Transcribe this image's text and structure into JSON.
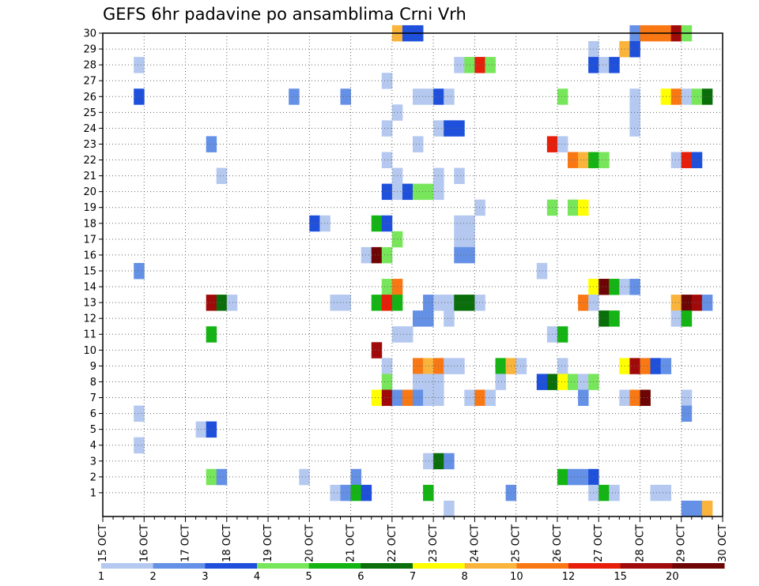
{
  "chart_data": {
    "type": "heatmap",
    "title": "GEFS 6hr padavine po ansamblima Crni Vrh",
    "xlabel": "",
    "ylabel": "",
    "x_ticks": [
      "15 OCT",
      "16 OCT",
      "17 OCT",
      "18 OCT",
      "19 OCT",
      "20 OCT",
      "21 OCT",
      "22 OCT",
      "23 OCT",
      "24 OCT",
      "25 OCT",
      "26 OCT",
      "27 OCT",
      "28 OCT",
      "29 OCT",
      "30 OCT"
    ],
    "y_ticks": [
      "1",
      "2",
      "3",
      "4",
      "5",
      "6",
      "7",
      "8",
      "9",
      "10",
      "11",
      "12",
      "13",
      "14",
      "15",
      "16",
      "17",
      "18",
      "19",
      "20",
      "21",
      "22",
      "23",
      "24",
      "25",
      "26",
      "27",
      "28",
      "29",
      "30"
    ],
    "x_range": [
      "15 OCT 00Z",
      "30 OCT 00Z"
    ],
    "y_range": [
      0,
      30
    ],
    "time_step_hours": 6,
    "grid": true,
    "grid_style": "dotted",
    "color_scale": {
      "colors": [
        "#b4c8f0",
        "#6490e6",
        "#1e50dc",
        "#78e65a",
        "#14b414",
        "#0a6e0a",
        "#ffff00",
        "#fab43c",
        "#fa7814",
        "#e61e0a",
        "#a00a0a",
        "#6e0505"
      ],
      "labels": [
        "1",
        "2",
        "3",
        "4",
        "5",
        "6",
        "7",
        "8",
        "10",
        "12",
        "15",
        "20"
      ]
    },
    "cells": [
      {
        "member": 30,
        "day": 22,
        "hour": 0,
        "cls": 8
      },
      {
        "member": 30,
        "day": 22,
        "hour": 6,
        "cls": 3
      },
      {
        "member": 30,
        "day": 22,
        "hour": 12,
        "cls": 3
      },
      {
        "member": 30,
        "day": 27,
        "hour": 18,
        "cls": 2
      },
      {
        "member": 30,
        "day": 28,
        "hour": 0,
        "cls": 9
      },
      {
        "member": 30,
        "day": 28,
        "hour": 6,
        "cls": 9
      },
      {
        "member": 30,
        "day": 28,
        "hour": 12,
        "cls": 9
      },
      {
        "member": 30,
        "day": 28,
        "hour": 18,
        "cls": 11
      },
      {
        "member": 30,
        "day": 29,
        "hour": 0,
        "cls": 4
      },
      {
        "member": 29,
        "day": 26,
        "hour": 18,
        "cls": 1
      },
      {
        "member": 29,
        "day": 27,
        "hour": 12,
        "cls": 8
      },
      {
        "member": 29,
        "day": 27,
        "hour": 18,
        "cls": 3
      },
      {
        "member": 28,
        "day": 15,
        "hour": 18,
        "cls": 1
      },
      {
        "member": 28,
        "day": 23,
        "hour": 12,
        "cls": 1
      },
      {
        "member": 28,
        "day": 23,
        "hour": 18,
        "cls": 4
      },
      {
        "member": 28,
        "day": 24,
        "hour": 0,
        "cls": 10
      },
      {
        "member": 28,
        "day": 24,
        "hour": 6,
        "cls": 4
      },
      {
        "member": 28,
        "day": 26,
        "hour": 18,
        "cls": 3
      },
      {
        "member": 28,
        "day": 27,
        "hour": 0,
        "cls": 1
      },
      {
        "member": 28,
        "day": 27,
        "hour": 6,
        "cls": 3
      },
      {
        "member": 27,
        "day": 21,
        "hour": 18,
        "cls": 1
      },
      {
        "member": 26,
        "day": 15,
        "hour": 18,
        "cls": 3
      },
      {
        "member": 26,
        "day": 19,
        "hour": 12,
        "cls": 2
      },
      {
        "member": 26,
        "day": 20,
        "hour": 18,
        "cls": 2
      },
      {
        "member": 26,
        "day": 22,
        "hour": 12,
        "cls": 1
      },
      {
        "member": 26,
        "day": 22,
        "hour": 18,
        "cls": 1
      },
      {
        "member": 26,
        "day": 23,
        "hour": 0,
        "cls": 3
      },
      {
        "member": 26,
        "day": 23,
        "hour": 6,
        "cls": 1
      },
      {
        "member": 26,
        "day": 26,
        "hour": 0,
        "cls": 4
      },
      {
        "member": 26,
        "day": 27,
        "hour": 18,
        "cls": 1
      },
      {
        "member": 26,
        "day": 28,
        "hour": 12,
        "cls": 7
      },
      {
        "member": 26,
        "day": 28,
        "hour": 18,
        "cls": 9
      },
      {
        "member": 26,
        "day": 29,
        "hour": 0,
        "cls": 1
      },
      {
        "member": 26,
        "day": 29,
        "hour": 6,
        "cls": 4
      },
      {
        "member": 26,
        "day": 29,
        "hour": 12,
        "cls": 6
      },
      {
        "member": 25,
        "day": 22,
        "hour": 0,
        "cls": 1
      },
      {
        "member": 25,
        "day": 27,
        "hour": 18,
        "cls": 1
      },
      {
        "member": 24,
        "day": 21,
        "hour": 18,
        "cls": 1
      },
      {
        "member": 24,
        "day": 23,
        "hour": 0,
        "cls": 1
      },
      {
        "member": 24,
        "day": 23,
        "hour": 6,
        "cls": 3
      },
      {
        "member": 24,
        "day": 23,
        "hour": 12,
        "cls": 3
      },
      {
        "member": 24,
        "day": 27,
        "hour": 18,
        "cls": 1
      },
      {
        "member": 23,
        "day": 17,
        "hour": 12,
        "cls": 2
      },
      {
        "member": 23,
        "day": 22,
        "hour": 12,
        "cls": 1
      },
      {
        "member": 23,
        "day": 25,
        "hour": 18,
        "cls": 10
      },
      {
        "member": 23,
        "day": 26,
        "hour": 0,
        "cls": 1
      },
      {
        "member": 22,
        "day": 21,
        "hour": 18,
        "cls": 1
      },
      {
        "member": 22,
        "day": 26,
        "hour": 6,
        "cls": 9
      },
      {
        "member": 22,
        "day": 26,
        "hour": 12,
        "cls": 8
      },
      {
        "member": 22,
        "day": 26,
        "hour": 18,
        "cls": 5
      },
      {
        "member": 22,
        "day": 27,
        "hour": 0,
        "cls": 4
      },
      {
        "member": 22,
        "day": 28,
        "hour": 18,
        "cls": 1
      },
      {
        "member": 22,
        "day": 29,
        "hour": 0,
        "cls": 10
      },
      {
        "member": 22,
        "day": 29,
        "hour": 6,
        "cls": 3
      },
      {
        "member": 21,
        "day": 17,
        "hour": 18,
        "cls": 1
      },
      {
        "member": 21,
        "day": 22,
        "hour": 0,
        "cls": 1
      },
      {
        "member": 21,
        "day": 23,
        "hour": 0,
        "cls": 1
      },
      {
        "member": 21,
        "day": 23,
        "hour": 12,
        "cls": 1
      },
      {
        "member": 20,
        "day": 21,
        "hour": 18,
        "cls": 3
      },
      {
        "member": 20,
        "day": 22,
        "hour": 0,
        "cls": 1
      },
      {
        "member": 20,
        "day": 22,
        "hour": 6,
        "cls": 3
      },
      {
        "member": 20,
        "day": 22,
        "hour": 12,
        "cls": 4
      },
      {
        "member": 20,
        "day": 22,
        "hour": 18,
        "cls": 4
      },
      {
        "member": 20,
        "day": 23,
        "hour": 0,
        "cls": 1
      },
      {
        "member": 19,
        "day": 24,
        "hour": 0,
        "cls": 1
      },
      {
        "member": 19,
        "day": 25,
        "hour": 18,
        "cls": 4
      },
      {
        "member": 19,
        "day": 26,
        "hour": 6,
        "cls": 4
      },
      {
        "member": 19,
        "day": 26,
        "hour": 12,
        "cls": 7
      },
      {
        "member": 18,
        "day": 20,
        "hour": 0,
        "cls": 3
      },
      {
        "member": 18,
        "day": 20,
        "hour": 6,
        "cls": 1
      },
      {
        "member": 18,
        "day": 21,
        "hour": 12,
        "cls": 5
      },
      {
        "member": 18,
        "day": 21,
        "hour": 18,
        "cls": 3
      },
      {
        "member": 18,
        "day": 23,
        "hour": 12,
        "cls": 1
      },
      {
        "member": 18,
        "day": 23,
        "hour": 18,
        "cls": 1
      },
      {
        "member": 17,
        "day": 22,
        "hour": 0,
        "cls": 4
      },
      {
        "member": 17,
        "day": 23,
        "hour": 12,
        "cls": 1
      },
      {
        "member": 17,
        "day": 23,
        "hour": 18,
        "cls": 1
      },
      {
        "member": 16,
        "day": 21,
        "hour": 6,
        "cls": 1
      },
      {
        "member": 16,
        "day": 21,
        "hour": 12,
        "cls": 12
      },
      {
        "member": 16,
        "day": 21,
        "hour": 18,
        "cls": 4
      },
      {
        "member": 16,
        "day": 23,
        "hour": 12,
        "cls": 2
      },
      {
        "member": 16,
        "day": 23,
        "hour": 18,
        "cls": 2
      },
      {
        "member": 15,
        "day": 15,
        "hour": 18,
        "cls": 2
      },
      {
        "member": 15,
        "day": 25,
        "hour": 12,
        "cls": 1
      },
      {
        "member": 14,
        "day": 21,
        "hour": 18,
        "cls": 4
      },
      {
        "member": 14,
        "day": 22,
        "hour": 0,
        "cls": 9
      },
      {
        "member": 14,
        "day": 26,
        "hour": 18,
        "cls": 7
      },
      {
        "member": 14,
        "day": 27,
        "hour": 0,
        "cls": 12
      },
      {
        "member": 14,
        "day": 27,
        "hour": 6,
        "cls": 5
      },
      {
        "member": 14,
        "day": 27,
        "hour": 12,
        "cls": 1
      },
      {
        "member": 14,
        "day": 27,
        "hour": 18,
        "cls": 2
      },
      {
        "member": 13,
        "day": 17,
        "hour": 12,
        "cls": 11
      },
      {
        "member": 13,
        "day": 17,
        "hour": 18,
        "cls": 6
      },
      {
        "member": 13,
        "day": 18,
        "hour": 0,
        "cls": 1
      },
      {
        "member": 13,
        "day": 20,
        "hour": 12,
        "cls": 1
      },
      {
        "member": 13,
        "day": 20,
        "hour": 18,
        "cls": 1
      },
      {
        "member": 13,
        "day": 21,
        "hour": 12,
        "cls": 5
      },
      {
        "member": 13,
        "day": 21,
        "hour": 18,
        "cls": 10
      },
      {
        "member": 13,
        "day": 22,
        "hour": 0,
        "cls": 5
      },
      {
        "member": 13,
        "day": 22,
        "hour": 18,
        "cls": 2
      },
      {
        "member": 13,
        "day": 23,
        "hour": 0,
        "cls": 1
      },
      {
        "member": 13,
        "day": 23,
        "hour": 6,
        "cls": 1
      },
      {
        "member": 13,
        "day": 23,
        "hour": 12,
        "cls": 6
      },
      {
        "member": 13,
        "day": 23,
        "hour": 18,
        "cls": 6
      },
      {
        "member": 13,
        "day": 24,
        "hour": 0,
        "cls": 1
      },
      {
        "member": 13,
        "day": 26,
        "hour": 12,
        "cls": 9
      },
      {
        "member": 13,
        "day": 26,
        "hour": 18,
        "cls": 1
      },
      {
        "member": 13,
        "day": 28,
        "hour": 18,
        "cls": 8
      },
      {
        "member": 13,
        "day": 29,
        "hour": 0,
        "cls": 12
      },
      {
        "member": 13,
        "day": 29,
        "hour": 6,
        "cls": 11
      },
      {
        "member": 13,
        "day": 29,
        "hour": 12,
        "cls": 2
      },
      {
        "member": 12,
        "day": 22,
        "hour": 12,
        "cls": 2
      },
      {
        "member": 12,
        "day": 22,
        "hour": 18,
        "cls": 2
      },
      {
        "member": 12,
        "day": 23,
        "hour": 6,
        "cls": 1
      },
      {
        "member": 12,
        "day": 27,
        "hour": 0,
        "cls": 6
      },
      {
        "member": 12,
        "day": 27,
        "hour": 6,
        "cls": 5
      },
      {
        "member": 12,
        "day": 28,
        "hour": 18,
        "cls": 1
      },
      {
        "member": 12,
        "day": 29,
        "hour": 0,
        "cls": 5
      },
      {
        "member": 11,
        "day": 17,
        "hour": 12,
        "cls": 5
      },
      {
        "member": 11,
        "day": 22,
        "hour": 0,
        "cls": 1
      },
      {
        "member": 11,
        "day": 22,
        "hour": 6,
        "cls": 1
      },
      {
        "member": 11,
        "day": 25,
        "hour": 18,
        "cls": 1
      },
      {
        "member": 11,
        "day": 26,
        "hour": 0,
        "cls": 5
      },
      {
        "member": 10,
        "day": 21,
        "hour": 12,
        "cls": 11
      },
      {
        "member": 9,
        "day": 21,
        "hour": 18,
        "cls": 1
      },
      {
        "member": 9,
        "day": 22,
        "hour": 12,
        "cls": 9
      },
      {
        "member": 9,
        "day": 22,
        "hour": 18,
        "cls": 8
      },
      {
        "member": 9,
        "day": 23,
        "hour": 0,
        "cls": 9
      },
      {
        "member": 9,
        "day": 23,
        "hour": 6,
        "cls": 1
      },
      {
        "member": 9,
        "day": 23,
        "hour": 12,
        "cls": 1
      },
      {
        "member": 9,
        "day": 24,
        "hour": 12,
        "cls": 5
      },
      {
        "member": 9,
        "day": 24,
        "hour": 18,
        "cls": 8
      },
      {
        "member": 9,
        "day": 25,
        "hour": 0,
        "cls": 1
      },
      {
        "member": 9,
        "day": 26,
        "hour": 0,
        "cls": 1
      },
      {
        "member": 9,
        "day": 27,
        "hour": 12,
        "cls": 7
      },
      {
        "member": 9,
        "day": 27,
        "hour": 18,
        "cls": 11
      },
      {
        "member": 9,
        "day": 28,
        "hour": 0,
        "cls": 9
      },
      {
        "member": 9,
        "day": 28,
        "hour": 6,
        "cls": 3
      },
      {
        "member": 9,
        "day": 28,
        "hour": 12,
        "cls": 2
      },
      {
        "member": 8,
        "day": 21,
        "hour": 18,
        "cls": 4
      },
      {
        "member": 8,
        "day": 22,
        "hour": 12,
        "cls": 1
      },
      {
        "member": 8,
        "day": 22,
        "hour": 18,
        "cls": 1
      },
      {
        "member": 8,
        "day": 23,
        "hour": 0,
        "cls": 1
      },
      {
        "member": 8,
        "day": 24,
        "hour": 12,
        "cls": 1
      },
      {
        "member": 8,
        "day": 25,
        "hour": 12,
        "cls": 3
      },
      {
        "member": 8,
        "day": 25,
        "hour": 18,
        "cls": 6
      },
      {
        "member": 8,
        "day": 26,
        "hour": 0,
        "cls": 7
      },
      {
        "member": 8,
        "day": 26,
        "hour": 6,
        "cls": 4
      },
      {
        "member": 8,
        "day": 26,
        "hour": 12,
        "cls": 1
      },
      {
        "member": 8,
        "day": 26,
        "hour": 18,
        "cls": 4
      },
      {
        "member": 7,
        "day": 21,
        "hour": 12,
        "cls": 7
      },
      {
        "member": 7,
        "day": 21,
        "hour": 18,
        "cls": 11
      },
      {
        "member": 7,
        "day": 22,
        "hour": 0,
        "cls": 2
      },
      {
        "member": 7,
        "day": 22,
        "hour": 6,
        "cls": 9
      },
      {
        "member": 7,
        "day": 22,
        "hour": 12,
        "cls": 2
      },
      {
        "member": 7,
        "day": 22,
        "hour": 18,
        "cls": 1
      },
      {
        "member": 7,
        "day": 23,
        "hour": 0,
        "cls": 1
      },
      {
        "member": 7,
        "day": 23,
        "hour": 18,
        "cls": 1
      },
      {
        "member": 7,
        "day": 24,
        "hour": 0,
        "cls": 9
      },
      {
        "member": 7,
        "day": 24,
        "hour": 6,
        "cls": 1
      },
      {
        "member": 7,
        "day": 26,
        "hour": 12,
        "cls": 2
      },
      {
        "member": 7,
        "day": 27,
        "hour": 12,
        "cls": 1
      },
      {
        "member": 7,
        "day": 27,
        "hour": 18,
        "cls": 9
      },
      {
        "member": 7,
        "day": 28,
        "hour": 0,
        "cls": 12
      },
      {
        "member": 7,
        "day": 29,
        "hour": 0,
        "cls": 1
      },
      {
        "member": 6,
        "day": 15,
        "hour": 18,
        "cls": 1
      },
      {
        "member": 6,
        "day": 29,
        "hour": 0,
        "cls": 2
      },
      {
        "member": 5,
        "day": 17,
        "hour": 6,
        "cls": 1
      },
      {
        "member": 5,
        "day": 17,
        "hour": 12,
        "cls": 3
      },
      {
        "member": 4,
        "day": 15,
        "hour": 18,
        "cls": 1
      },
      {
        "member": 3,
        "day": 22,
        "hour": 18,
        "cls": 1
      },
      {
        "member": 3,
        "day": 23,
        "hour": 0,
        "cls": 6
      },
      {
        "member": 3,
        "day": 23,
        "hour": 6,
        "cls": 2
      },
      {
        "member": 2,
        "day": 17,
        "hour": 12,
        "cls": 4
      },
      {
        "member": 2,
        "day": 17,
        "hour": 18,
        "cls": 2
      },
      {
        "member": 2,
        "day": 19,
        "hour": 18,
        "cls": 1
      },
      {
        "member": 2,
        "day": 21,
        "hour": 0,
        "cls": 2
      },
      {
        "member": 2,
        "day": 26,
        "hour": 0,
        "cls": 5
      },
      {
        "member": 2,
        "day": 26,
        "hour": 6,
        "cls": 2
      },
      {
        "member": 2,
        "day": 26,
        "hour": 12,
        "cls": 2
      },
      {
        "member": 2,
        "day": 26,
        "hour": 18,
        "cls": 3
      },
      {
        "member": 1,
        "day": 20,
        "hour": 12,
        "cls": 1
      },
      {
        "member": 1,
        "day": 20,
        "hour": 18,
        "cls": 2
      },
      {
        "member": 1,
        "day": 21,
        "hour": 0,
        "cls": 5
      },
      {
        "member": 1,
        "day": 21,
        "hour": 6,
        "cls": 3
      },
      {
        "member": 1,
        "day": 22,
        "hour": 18,
        "cls": 5
      },
      {
        "member": 1,
        "day": 24,
        "hour": 18,
        "cls": 2
      },
      {
        "member": 1,
        "day": 26,
        "hour": 18,
        "cls": 1
      },
      {
        "member": 1,
        "day": 27,
        "hour": 0,
        "cls": 5
      },
      {
        "member": 1,
        "day": 27,
        "hour": 6,
        "cls": 1
      },
      {
        "member": 1,
        "day": 28,
        "hour": 6,
        "cls": 1
      },
      {
        "member": 1,
        "day": 28,
        "hour": 12,
        "cls": 1
      },
      {
        "member": 0,
        "day": 23,
        "hour": 6,
        "cls": 1
      },
      {
        "member": 0,
        "day": 29,
        "hour": 0,
        "cls": 2
      },
      {
        "member": 0,
        "day": 29,
        "hour": 6,
        "cls": 2
      },
      {
        "member": 0,
        "day": 29,
        "hour": 12,
        "cls": 8
      }
    ]
  }
}
